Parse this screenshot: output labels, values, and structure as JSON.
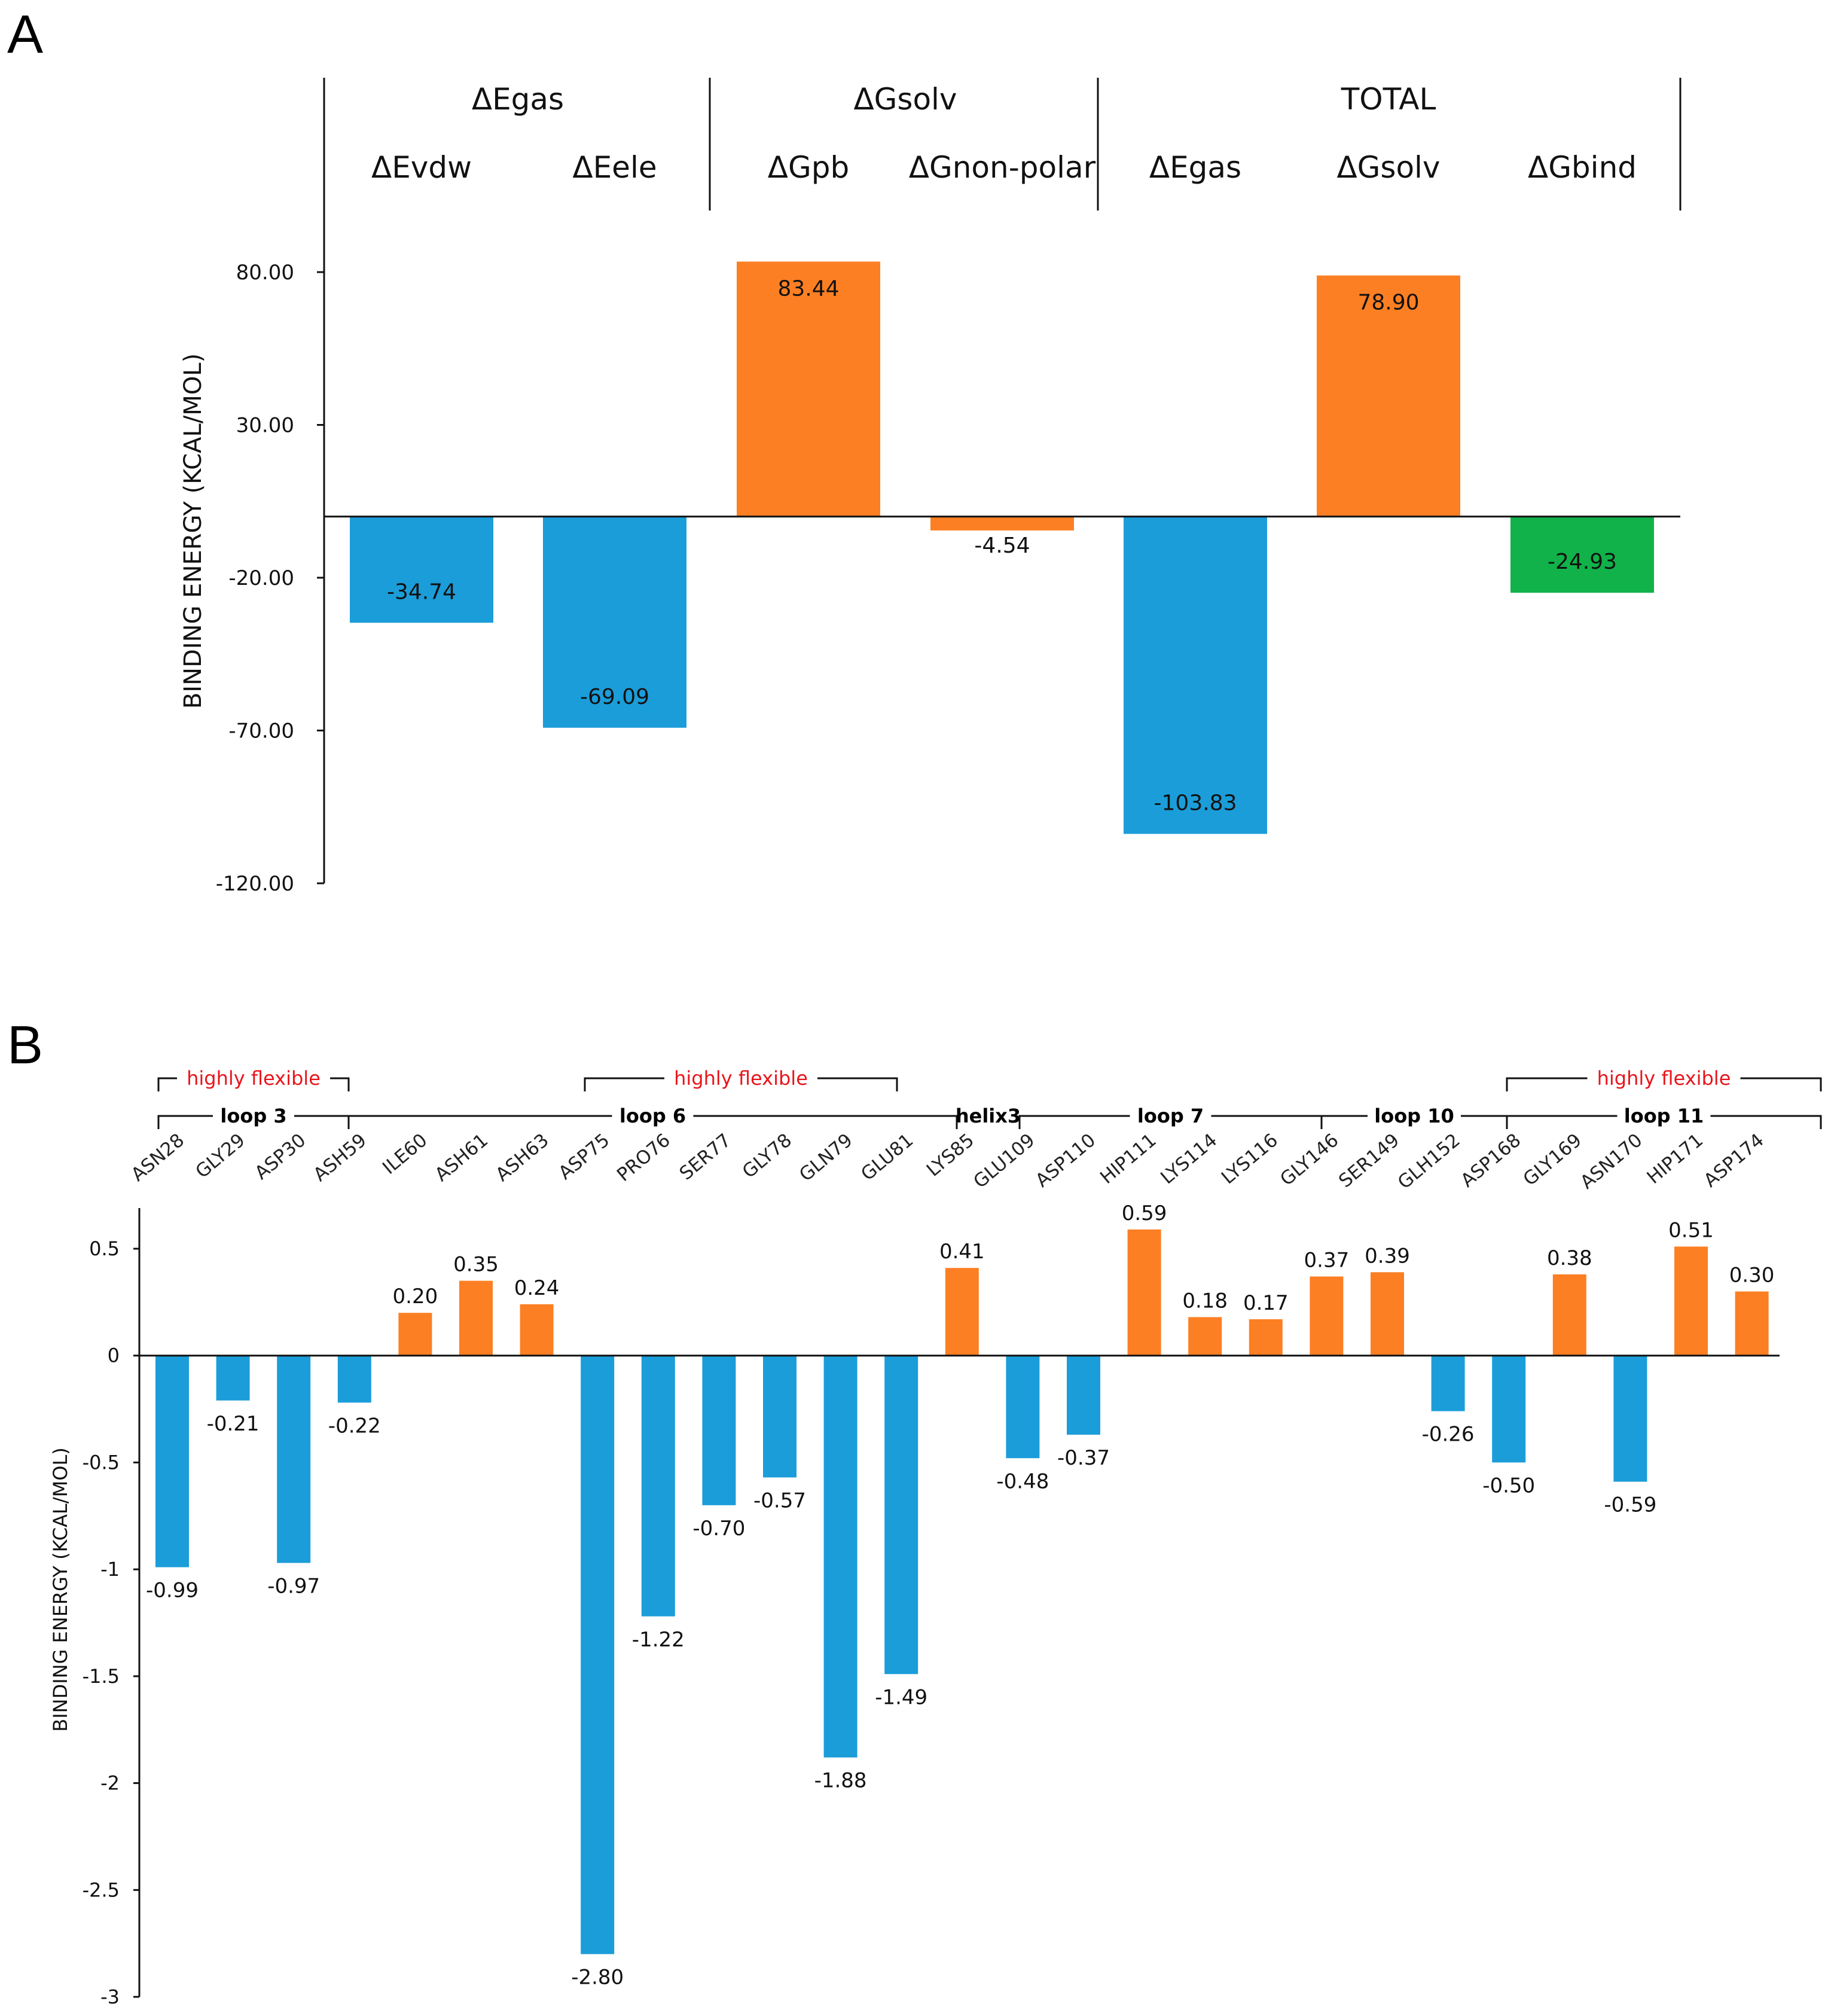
{
  "panels": {
    "a": "A",
    "b": "B"
  },
  "chart_data": [
    {
      "type": "bar",
      "panel": "A",
      "ylabel": "BINDING ENERGY (KCAL/MOL)",
      "ylim": [
        -120,
        90
      ],
      "yticks": [
        80,
        30,
        -20,
        -70,
        -120
      ],
      "ytick_labels": [
        "80.00",
        "30.00",
        "-20.00",
        "-70.00",
        "-120.00"
      ],
      "groups": [
        {
          "name": "ΔEgas",
          "categories": [
            "ΔEvdw",
            "ΔEele"
          ]
        },
        {
          "name": "ΔGsolv",
          "categories": [
            "ΔGpb",
            "ΔGnon-polar"
          ]
        },
        {
          "name": "TOTAL",
          "categories": [
            "ΔEgas",
            "ΔGsolv",
            "ΔGbind"
          ]
        }
      ],
      "categories": [
        "ΔEvdw",
        "ΔEele",
        "ΔGpb",
        "ΔGnon-polar",
        "ΔEgas",
        "ΔGsolv",
        "ΔGbind"
      ],
      "values": [
        -34.74,
        -69.09,
        83.44,
        -4.54,
        -103.83,
        78.9,
        -24.93
      ],
      "value_labels": [
        "-34.74",
        "-69.09",
        "83.44",
        "-4.54",
        "-103.83",
        "78.90",
        "-24.93"
      ],
      "colors": [
        "#1b9dd9",
        "#1b9dd9",
        "#fd7f23",
        "#fd7f23",
        "#1b9dd9",
        "#fd7f23",
        "#11b24a"
      ]
    },
    {
      "type": "bar",
      "panel": "B",
      "ylabel": "BINDING ENERGY (KCAL/MOL)",
      "ylim": [
        -3,
        0.7
      ],
      "yticks": [
        0.5,
        0,
        -0.5,
        -1,
        -1.5,
        -2,
        -2.5,
        -3
      ],
      "ytick_labels": [
        "0.5",
        "0",
        "-0.5",
        "-1",
        "-1.5",
        "-2",
        "-2.5",
        "-3"
      ],
      "categories": [
        "ASN28",
        "GLY29",
        "ASP30",
        "ASH59",
        "ILE60",
        "ASH61",
        "ASH63",
        "ASP75",
        "PRO76",
        "SER77",
        "GLY78",
        "GLN79",
        "GLU81",
        "LYS85",
        "GLU109",
        "ASP110",
        "HIP111",
        "LYS114",
        "LYS116",
        "GLY146",
        "SER149",
        "GLH152",
        "ASP168",
        "GLY169",
        "ASN170",
        "HIP171",
        "ASP174"
      ],
      "values": [
        -0.99,
        -0.21,
        -0.97,
        -0.22,
        0.2,
        0.35,
        0.24,
        -2.8,
        -1.22,
        -0.7,
        -0.57,
        -1.88,
        -1.49,
        0.41,
        -0.48,
        -0.37,
        0.59,
        0.18,
        0.17,
        0.37,
        0.39,
        -0.26,
        -0.5,
        0.38,
        -0.59,
        0.51,
        0.3
      ],
      "value_labels": [
        "-0.99",
        "-0.21",
        "-0.97",
        "-0.22",
        "0.20",
        "0.35",
        "0.24",
        "-2.80",
        "-1.22",
        "-0.70",
        "-0.57",
        "-1.88",
        "-1.49",
        "0.41",
        "-0.48",
        "-0.37",
        "0.59",
        "0.18",
        "0.17",
        "0.37",
        "0.39",
        "-0.26",
        "-0.50",
        "0.38",
        "-0.59",
        "0.51",
        "0.30"
      ],
      "regions": [
        {
          "name": "loop 3",
          "start": 0,
          "end": 2
        },
        {
          "name": "loop 6",
          "start": 3,
          "end": 12
        },
        {
          "name": "helix3",
          "start": 13,
          "end": 13
        },
        {
          "name": "loop 7",
          "start": 14,
          "end": 18
        },
        {
          "name": "loop 10",
          "start": 19,
          "end": 21
        },
        {
          "name": "loop 11",
          "start": 22,
          "end": 26
        }
      ],
      "flexible": [
        {
          "name": "highly flexible",
          "start": 0,
          "end": 2
        },
        {
          "name": "highly flexible",
          "start": 7,
          "end": 11
        },
        {
          "name": "highly flexible",
          "start": 22,
          "end": 26
        }
      ],
      "colors": {
        "positive": "#fd7f23",
        "negative": "#1b9dd9"
      }
    }
  ]
}
